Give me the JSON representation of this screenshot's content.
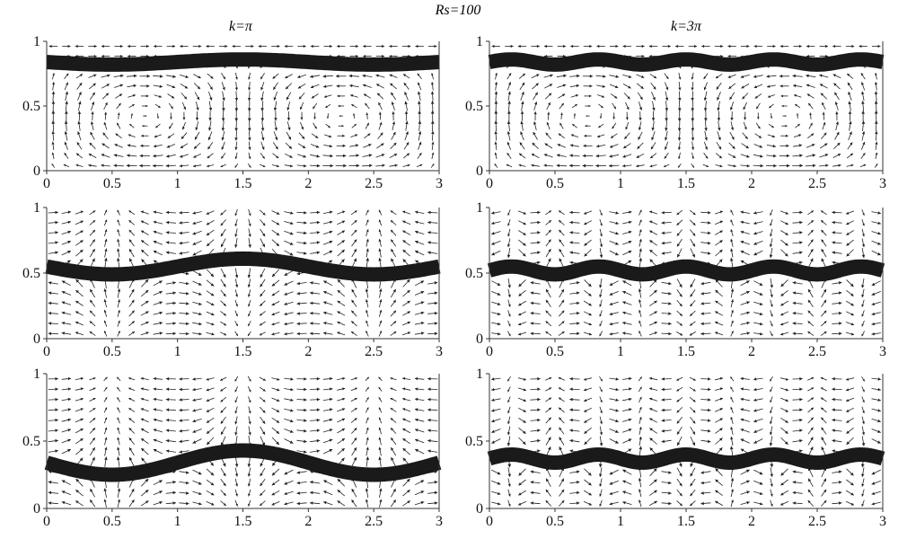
{
  "figure_title": "Rs=100",
  "columns": [
    "k=π",
    "k=3π"
  ],
  "x_ticks": [
    "0",
    "0.5",
    "1",
    "1.5",
    "2",
    "2.5",
    "3"
  ],
  "chart_data": [
    {
      "type": "vector-field",
      "panel": "row1-left",
      "k": "π",
      "title": "k=π",
      "xlim": [
        0,
        3
      ],
      "ylim": [
        0,
        1
      ],
      "x_ticks": [
        0,
        0.5,
        1,
        1.5,
        2,
        2.5,
        3
      ],
      "y_ticks": [
        0,
        0.5,
        1
      ],
      "interface_mean": 0.84,
      "interface_amplitude": 0.02,
      "interface_wavenumber": 3.14159,
      "flow": "cells"
    },
    {
      "type": "vector-field",
      "panel": "row1-right",
      "k": "3π",
      "title": "k=3π",
      "xlim": [
        0,
        3
      ],
      "ylim": [
        0,
        1
      ],
      "x_ticks": [
        0,
        0.5,
        1,
        1.5,
        2,
        2.5,
        3
      ],
      "y_ticks": [
        0,
        0.5,
        1
      ],
      "interface_mean": 0.84,
      "interface_amplitude": 0.02,
      "interface_wavenumber": 9.42478,
      "flow": "cells"
    },
    {
      "type": "vector-field",
      "panel": "row2-left",
      "k": "π",
      "xlim": [
        0,
        3
      ],
      "ylim": [
        0,
        1
      ],
      "x_ticks": [
        0,
        0.5,
        1,
        1.5,
        2,
        2.5,
        3
      ],
      "y_ticks": [
        0,
        0.5,
        1
      ],
      "interface_mean": 0.55,
      "interface_amplitude": 0.06,
      "interface_wavenumber": 3.14159,
      "flow": "plumes"
    },
    {
      "type": "vector-field",
      "panel": "row2-right",
      "k": "3π",
      "xlim": [
        0,
        3
      ],
      "ylim": [
        0,
        1
      ],
      "x_ticks": [
        0,
        0.5,
        1,
        1.5,
        2,
        2.5,
        3
      ],
      "y_ticks": [
        0,
        0.5,
        1
      ],
      "interface_mean": 0.52,
      "interface_amplitude": 0.03,
      "interface_wavenumber": 9.42478,
      "flow": "plumes"
    },
    {
      "type": "vector-field",
      "panel": "row3-left",
      "k": "π",
      "xlim": [
        0,
        3
      ],
      "ylim": [
        0,
        1
      ],
      "x_ticks": [
        0,
        0.5,
        1,
        1.5,
        2,
        2.5,
        3
      ],
      "y_ticks": [
        0,
        0.5,
        1
      ],
      "interface_mean": 0.34,
      "interface_amplitude": 0.09,
      "interface_wavenumber": 3.14159,
      "flow": "plumes"
    },
    {
      "type": "vector-field",
      "panel": "row3-right",
      "k": "3π",
      "xlim": [
        0,
        3
      ],
      "ylim": [
        0,
        1
      ],
      "x_ticks": [
        0,
        0.5,
        1,
        1.5,
        2,
        2.5,
        3
      ],
      "y_ticks": [
        0,
        0.5,
        1
      ],
      "interface_mean": 0.37,
      "interface_amplitude": 0.03,
      "interface_wavenumber": 9.42478,
      "flow": "plumes"
    }
  ]
}
